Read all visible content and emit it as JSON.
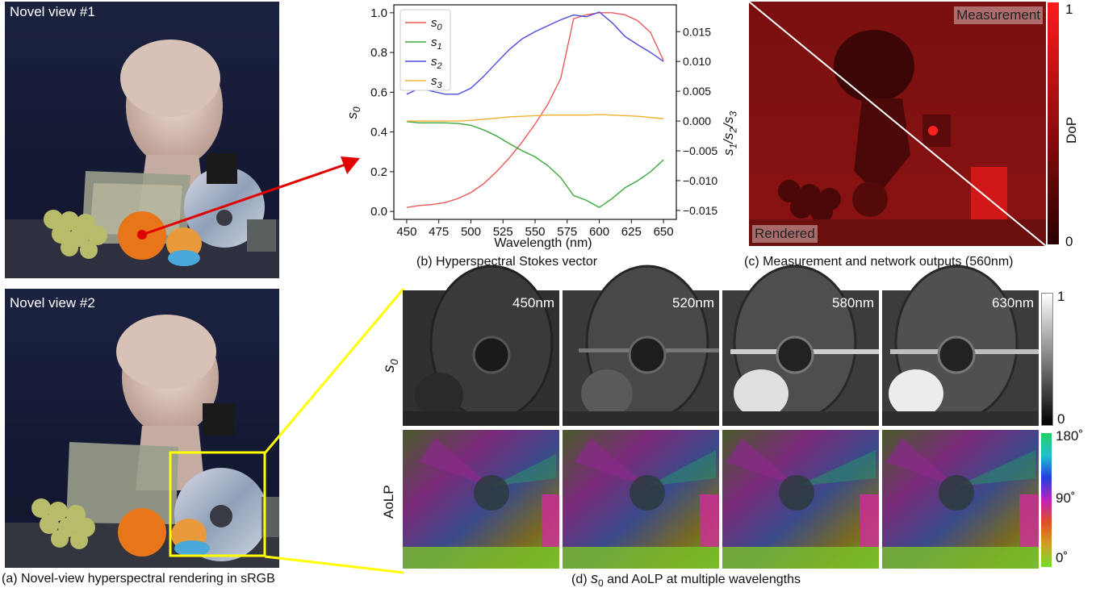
{
  "panel_a": {
    "view1_label": "Novel view #1",
    "view2_label": "Novel view #2",
    "caption": "(a) Novel-view hyperspectral rendering in sRGB"
  },
  "panel_b": {
    "caption": "(b) Hyperspectral Stokes vector"
  },
  "panel_c": {
    "measurement_label": "Measurement",
    "rendered_label": "Rendered",
    "colorbar_label": "DoP",
    "colorbar_max": "1",
    "colorbar_min": "0",
    "caption": "(c) Measurement and network outputs (560nm)"
  },
  "panel_d": {
    "row1_label_main": "s",
    "row1_label_sub": "0",
    "row2_label": "AoLP",
    "wavelengths": [
      "450nm",
      "520nm",
      "580nm",
      "630nm"
    ],
    "s0_colorbar_max": "1",
    "s0_colorbar_min": "0",
    "aolp_colorbar_max": "180˚",
    "aolp_colorbar_mid": "90˚",
    "aolp_colorbar_min": "0˚",
    "caption_prefix": "(d)",
    "caption_s": "s",
    "caption_sub": "0",
    "caption_rest": " and AoLP at multiple wavelengths"
  },
  "chart_data": {
    "type": "line",
    "xlabel": "Wavelength (nm)",
    "ylabel_left": "s0",
    "ylabel_right": "s1/s2/s3",
    "x": [
      450,
      460,
      470,
      480,
      490,
      500,
      510,
      520,
      530,
      540,
      550,
      560,
      570,
      580,
      590,
      600,
      610,
      620,
      630,
      640,
      650
    ],
    "xlim": [
      440,
      660
    ],
    "ylim_left": [
      -0.04,
      1.04
    ],
    "ylim_right": [
      -0.0165,
      0.0195
    ],
    "xticks": [
      "450",
      "475",
      "500",
      "525",
      "550",
      "575",
      "600",
      "625",
      "650"
    ],
    "yticks_left": [
      "0.0",
      "0.2",
      "0.4",
      "0.6",
      "0.8",
      "1.0"
    ],
    "yticks_right": [
      "0.015",
      "0.010",
      "0.005",
      "0.000",
      "−0.005",
      "−0.010",
      "−0.015"
    ],
    "legend_position": "top-left",
    "series": [
      {
        "name": "s0",
        "axis": "left",
        "color": "#e85a5a",
        "values": [
          0.02,
          0.03,
          0.035,
          0.045,
          0.065,
          0.095,
          0.14,
          0.2,
          0.27,
          0.35,
          0.44,
          0.54,
          0.67,
          0.97,
          0.99,
          1.0,
          1.0,
          0.99,
          0.96,
          0.9,
          0.76
        ]
      },
      {
        "name": "s1",
        "axis": "right",
        "color": "#3aa83a",
        "values": [
          -0.0001,
          -0.0003,
          -0.0003,
          -0.0003,
          -0.0004,
          -0.0007,
          -0.0015,
          -0.0025,
          -0.0038,
          -0.005,
          -0.006,
          -0.0075,
          -0.0095,
          -0.0125,
          -0.0133,
          -0.0145,
          -0.013,
          -0.0112,
          -0.01,
          -0.0085,
          -0.0065
        ]
      },
      {
        "name": "s2",
        "axis": "right",
        "color": "#4a4ae0",
        "values": [
          0.0045,
          0.0055,
          0.005,
          0.0045,
          0.0045,
          0.0055,
          0.0075,
          0.0098,
          0.012,
          0.0138,
          0.015,
          0.016,
          0.017,
          0.0178,
          0.0175,
          0.0183,
          0.0165,
          0.0142,
          0.0128,
          0.0115,
          0.01
        ]
      },
      {
        "name": "s3",
        "axis": "right",
        "color": "#f0b030",
        "values": [
          0.0,
          0.0,
          0.0,
          0.0,
          0.0,
          0.0001,
          0.0003,
          0.0005,
          0.0007,
          0.0008,
          0.0009,
          0.001,
          0.001,
          0.001,
          0.001,
          0.0011,
          0.001,
          0.0009,
          0.0008,
          0.0006,
          0.0004
        ]
      }
    ]
  }
}
